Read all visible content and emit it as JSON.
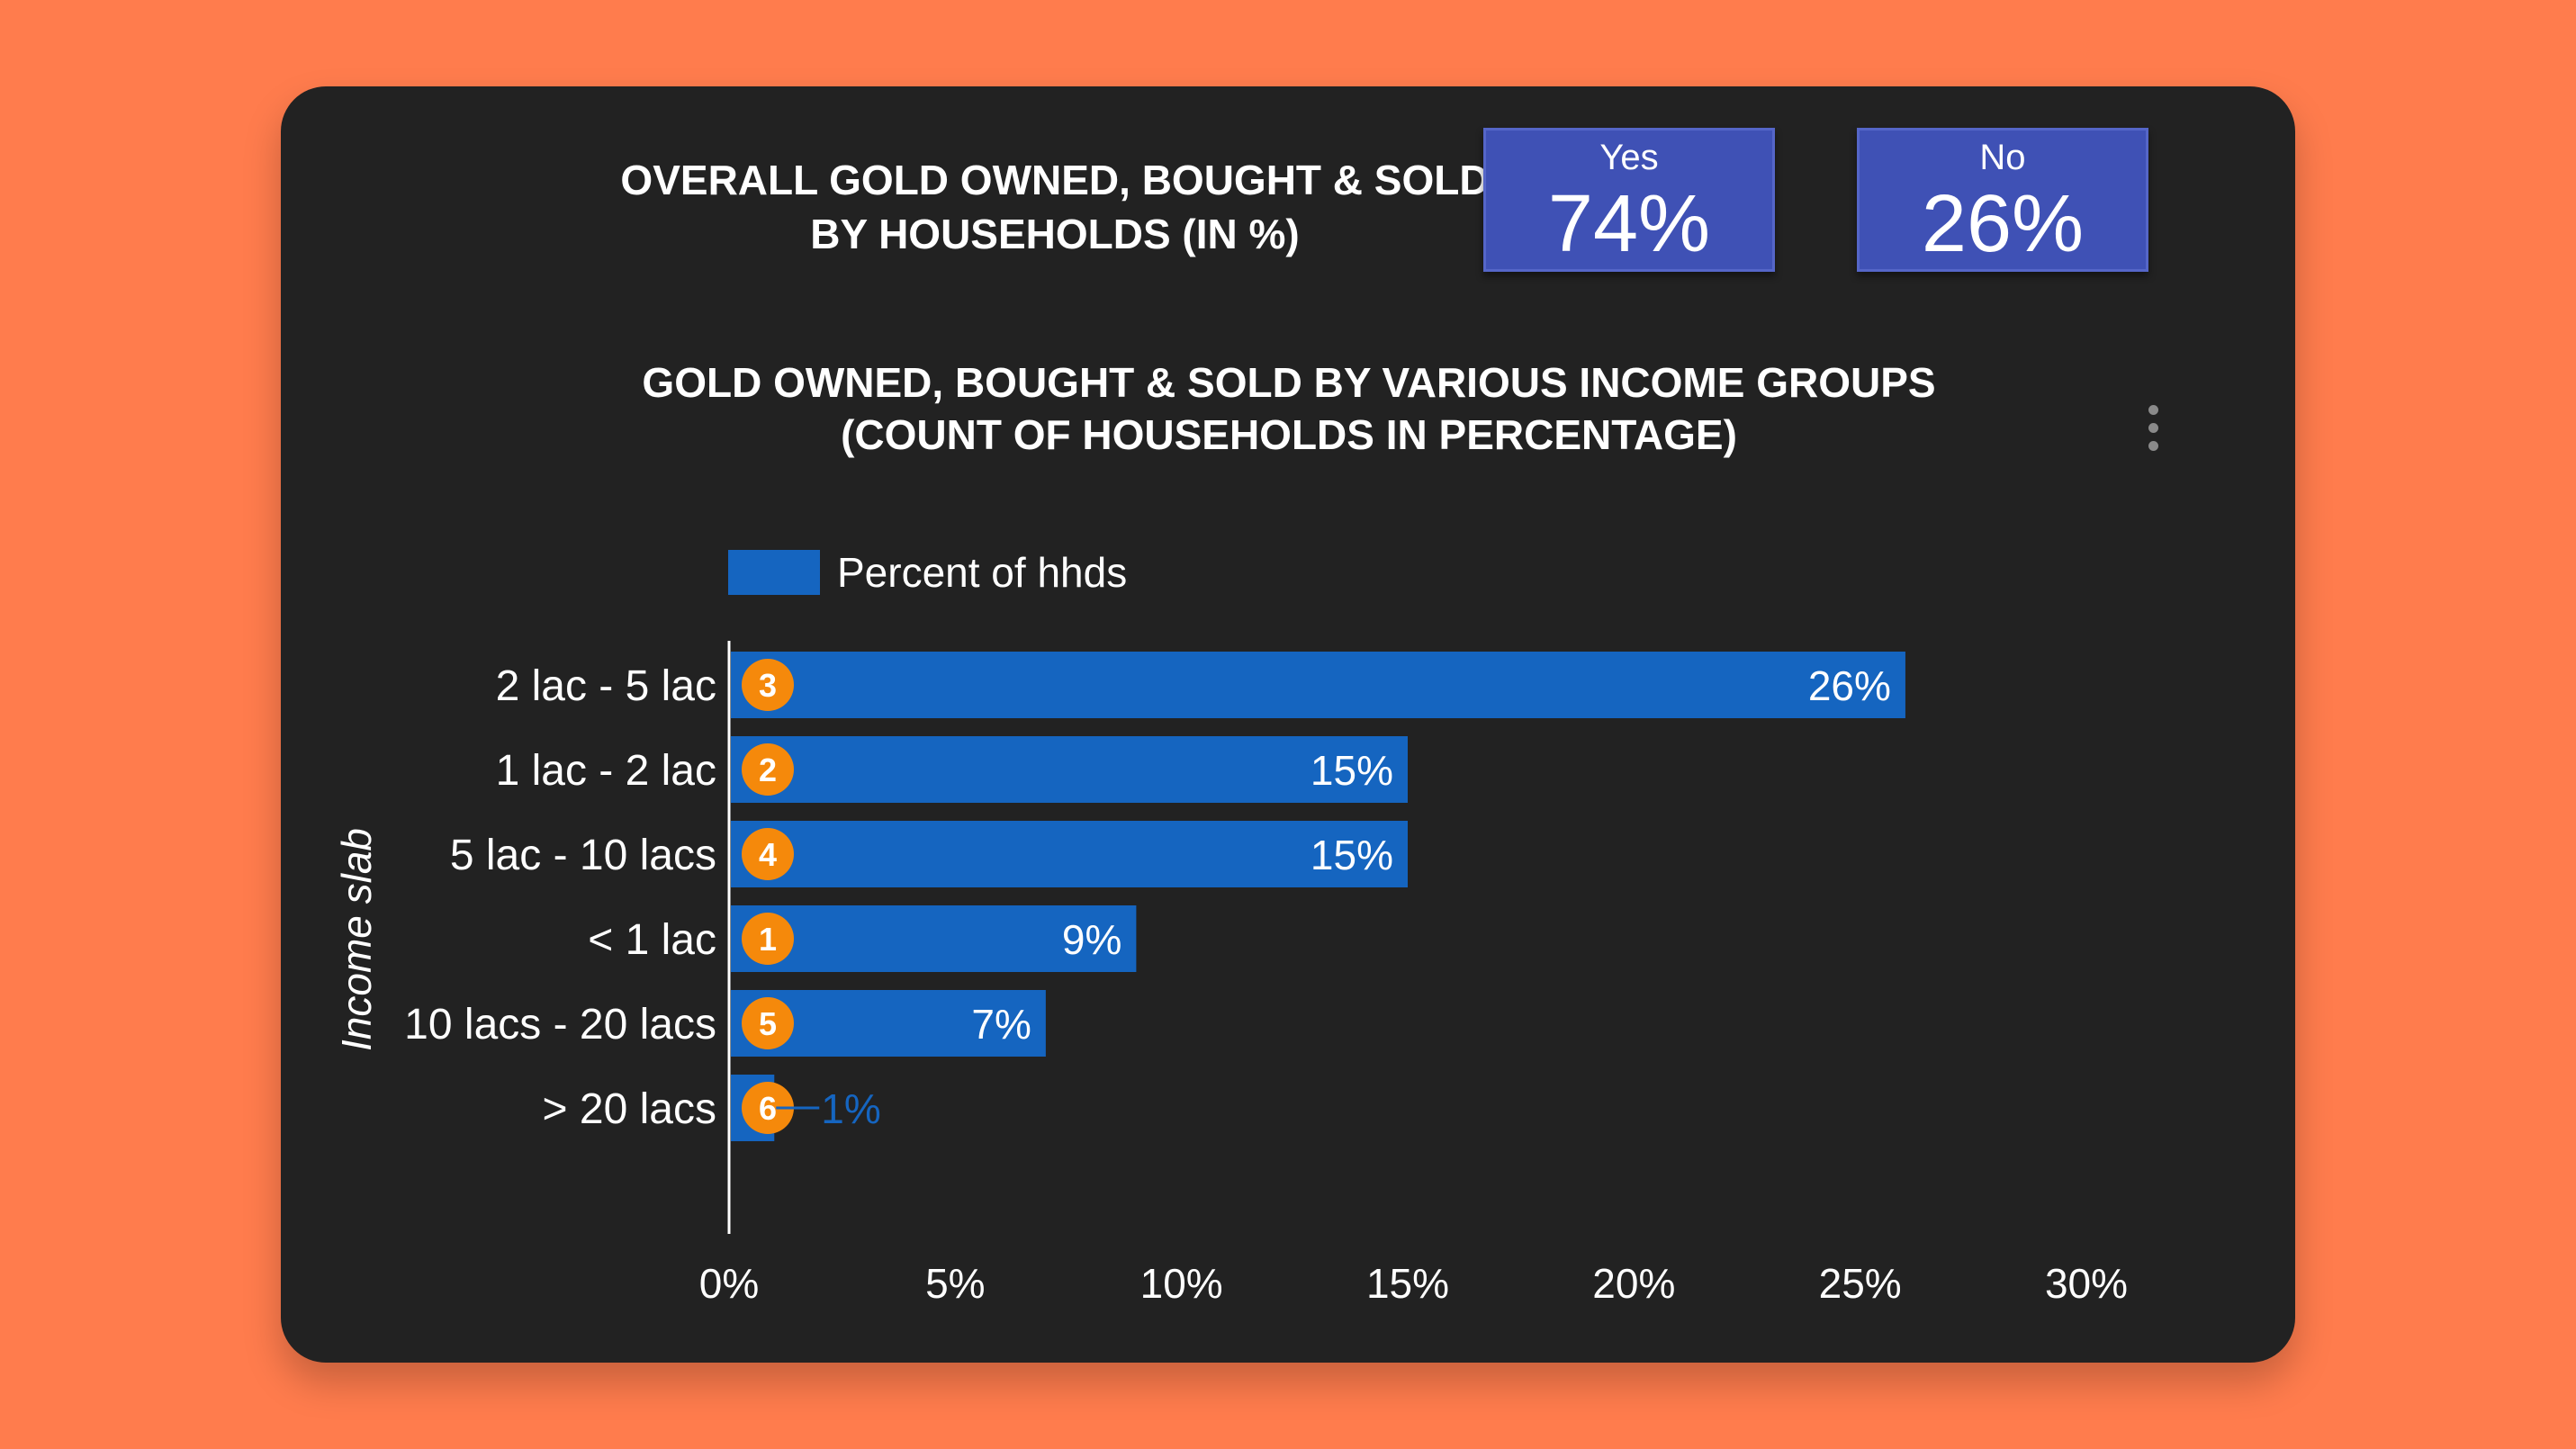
{
  "overall": {
    "title_line1": "OVERALL GOLD OWNED, BOUGHT & SOLD",
    "title_line2": "BY HOUSEHOLDS (IN %)",
    "yes_label": "Yes",
    "yes_value": "74%",
    "no_label": "No",
    "no_value": "26%"
  },
  "chart_title": {
    "line1": "GOLD OWNED, BOUGHT & SOLD BY VARIOUS INCOME GROUPS",
    "line2": "(COUNT OF HOUSEHOLDS IN PERCENTAGE)"
  },
  "colors": {
    "background": "#ff7c4d",
    "card": "#222222",
    "kpi": "#3f51b5",
    "bar": "#1565c0",
    "badge": "#f5890b"
  },
  "chart_data": {
    "type": "bar",
    "orientation": "horizontal",
    "legend": "Percent of hhds",
    "legend_position": "top",
    "ylabel": "Income slab",
    "xlim": [
      0,
      30
    ],
    "xticks": [
      0,
      5,
      10,
      15,
      20,
      25,
      30
    ],
    "tick_suffix": "%",
    "grid": false,
    "categories": [
      "2 lac - 5 lac",
      "1 lac - 2 lac",
      "5 lac - 10 lacs",
      "< 1 lac",
      "10 lacs - 20 lacs",
      "> 20 lacs"
    ],
    "values": [
      26,
      15,
      15,
      9,
      7,
      1
    ],
    "value_labels": [
      "26%",
      "15%",
      "15%",
      "9%",
      "7%",
      "1%"
    ],
    "rank_badges": [
      "3",
      "2",
      "4",
      "1",
      "5",
      "6"
    ]
  }
}
